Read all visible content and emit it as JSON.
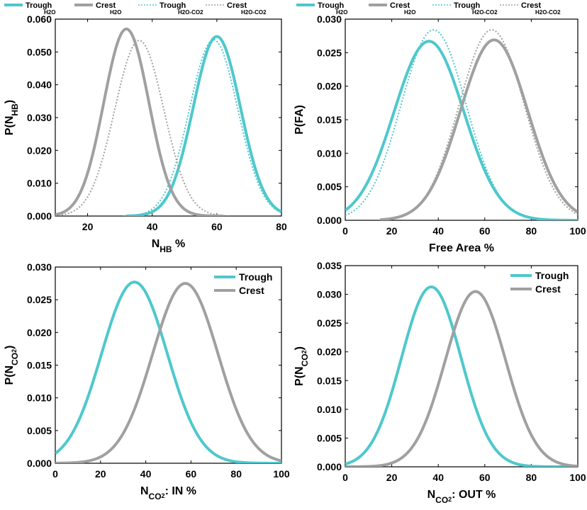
{
  "colors": {
    "trough": "#4EC8CC",
    "crest": "#A0A0A0"
  },
  "chart_data": [
    {
      "id": "nhb",
      "type": "line",
      "title": "",
      "ylabel_main": "P(N",
      "ylabel_sub": "HB",
      "ylabel_end": ")",
      "xlabel_main": "N",
      "xlabel_sub": "HB",
      "xlabel_end": " %",
      "xlim": [
        10,
        80
      ],
      "ylim": [
        0,
        0.06
      ],
      "xticks": [
        "20",
        "40",
        "60",
        "80"
      ],
      "xtick_values": [
        20,
        40,
        60,
        80
      ],
      "yticks": [
        "0.000",
        "0.010",
        "0.020",
        "0.030",
        "0.040",
        "0.050",
        "0.060"
      ],
      "ytick_values": [
        0,
        0.01,
        0.02,
        0.03,
        0.04,
        0.05,
        0.06
      ],
      "legend_position": "top-outside",
      "series": [
        {
          "name": "Trough",
          "sub": "H2O",
          "color_key": "trough",
          "style": "solid",
          "mean": 60,
          "sd": 7.3,
          "peak": 0.0547,
          "xmin": 32,
          "xmax": 80
        },
        {
          "name": "Crest",
          "sub": "H2O",
          "color_key": "crest",
          "style": "solid",
          "mean": 32,
          "sd": 7.0,
          "peak": 0.057,
          "xmin": 10,
          "xmax": 62
        },
        {
          "name": "Trough",
          "sub": "H2O-CO2",
          "color_key": "trough",
          "style": "dotted",
          "mean": 59,
          "sd": 7.5,
          "peak": 0.0537,
          "xmin": 31,
          "xmax": 80
        },
        {
          "name": "Crest",
          "sub": "H2O-CO2",
          "color_key": "crest",
          "style": "dotted",
          "mean": 36,
          "sd": 7.6,
          "peak": 0.0535,
          "xmin": 10,
          "xmax": 64
        }
      ]
    },
    {
      "id": "fa",
      "type": "line",
      "title": "",
      "ylabel_main": "P(FA)",
      "ylabel_sub": "",
      "ylabel_end": "",
      "xlabel_main": "Free Area %",
      "xlabel_sub": "",
      "xlabel_end": "",
      "xlim": [
        0,
        100
      ],
      "ylim": [
        0,
        0.03
      ],
      "xticks": [
        "0",
        "20",
        "40",
        "60",
        "80",
        "100"
      ],
      "xtick_values": [
        0,
        20,
        40,
        60,
        80,
        100
      ],
      "yticks": [
        "0.000",
        "0.005",
        "0.010",
        "0.015",
        "0.020",
        "0.025",
        "0.030"
      ],
      "ytick_values": [
        0,
        0.005,
        0.01,
        0.015,
        0.02,
        0.025,
        0.03
      ],
      "legend_position": "top-outside",
      "series": [
        {
          "name": "Trough",
          "sub": "H2O",
          "color_key": "trough",
          "style": "solid",
          "mean": 36,
          "sd": 15,
          "peak": 0.0267,
          "xmin": 0,
          "xmax": 100
        },
        {
          "name": "Crest",
          "sub": "H2O",
          "color_key": "crest",
          "style": "solid",
          "mean": 64,
          "sd": 14.5,
          "peak": 0.0269,
          "xmin": 15,
          "xmax": 100
        },
        {
          "name": "Trough",
          "sub": "H2O-CO2",
          "color_key": "trough",
          "style": "dotted",
          "mean": 38,
          "sd": 14,
          "peak": 0.0284,
          "xmin": 0,
          "xmax": 100
        },
        {
          "name": "Crest",
          "sub": "H2O-CO2",
          "color_key": "crest",
          "style": "dotted",
          "mean": 63,
          "sd": 14,
          "peak": 0.0284,
          "xmin": 15,
          "xmax": 100
        }
      ]
    },
    {
      "id": "nco2-in",
      "type": "line",
      "title": "",
      "ylabel_main": "P(N",
      "ylabel_sub": "CO2",
      "ylabel_end": ")",
      "xlabel_main": "N",
      "xlabel_sub": "CO2",
      "xlabel_end": ": IN %",
      "xlim": [
        0,
        100
      ],
      "ylim": [
        0,
        0.03
      ],
      "xticks": [
        "0",
        "20",
        "40",
        "60",
        "80",
        "100"
      ],
      "xtick_values": [
        0,
        20,
        40,
        60,
        80,
        100
      ],
      "yticks": [
        "0.000",
        "0.005",
        "0.010",
        "0.015",
        "0.020",
        "0.025",
        "0.030"
      ],
      "ytick_values": [
        0,
        0.005,
        0.01,
        0.015,
        0.02,
        0.025,
        0.03
      ],
      "legend_position": "top-right",
      "series": [
        {
          "name": "Trough",
          "sub": "",
          "color_key": "trough",
          "style": "solid",
          "mean": 35,
          "sd": 14.5,
          "peak": 0.0277,
          "xmin": 0,
          "xmax": 100
        },
        {
          "name": "Crest",
          "sub": "",
          "color_key": "crest",
          "style": "solid",
          "mean": 57.5,
          "sd": 14.5,
          "peak": 0.0275,
          "xmin": 0,
          "xmax": 100
        }
      ]
    },
    {
      "id": "nco2-out",
      "type": "line",
      "title": "",
      "ylabel_main": "P(N",
      "ylabel_sub": "CO2",
      "ylabel_end": ")",
      "xlabel_main": "N",
      "xlabel_sub": "CO2",
      "xlabel_end": ": OUT %",
      "xlim": [
        0,
        100
      ],
      "ylim": [
        0,
        0.035
      ],
      "xticks": [
        "0",
        "20",
        "40",
        "60",
        "80",
        "100"
      ],
      "xtick_values": [
        0,
        20,
        40,
        60,
        80,
        100
      ],
      "yticks": [
        "0.000",
        "0.005",
        "0.010",
        "0.015",
        "0.020",
        "0.025",
        "0.030",
        "0.035"
      ],
      "ytick_values": [
        0,
        0.005,
        0.01,
        0.015,
        0.02,
        0.025,
        0.03,
        0.035
      ],
      "legend_position": "top-right",
      "series": [
        {
          "name": "Trough",
          "sub": "",
          "color_key": "trough",
          "style": "solid",
          "mean": 37,
          "sd": 12.8,
          "peak": 0.0313,
          "xmin": 0,
          "xmax": 100
        },
        {
          "name": "Crest",
          "sub": "",
          "color_key": "crest",
          "style": "solid",
          "mean": 56,
          "sd": 13,
          "peak": 0.0305,
          "xmin": 0,
          "xmax": 100
        }
      ]
    }
  ]
}
